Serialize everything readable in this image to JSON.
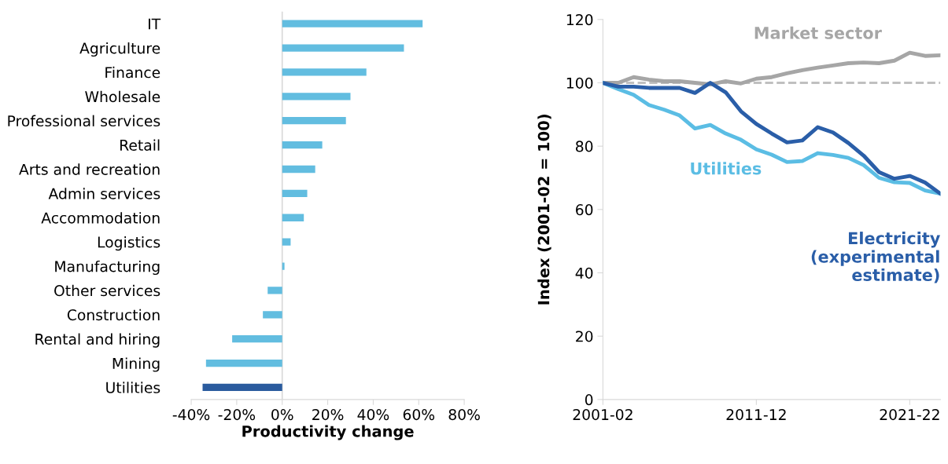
{
  "chart_data": [
    {
      "type": "bar",
      "orientation": "horizontal",
      "xlabel": "Productivity change",
      "categories": [
        "IT",
        "Agriculture",
        "Finance",
        "Wholesale",
        "Professional services",
        "Retail",
        "Arts and recreation",
        "Admin services",
        "Accommodation",
        "Logistics",
        "Manufacturing",
        "Other services",
        "Construction",
        "Rental and hiring",
        "Mining",
        "Utilities"
      ],
      "values": [
        61.7,
        53.5,
        37,
        30,
        28,
        17.6,
        14.5,
        11,
        9.5,
        3.7,
        1,
        -6.4,
        -8.5,
        -22,
        -33.5,
        -35
      ],
      "colors": [
        "#62bde0",
        "#62bde0",
        "#62bde0",
        "#62bde0",
        "#62bde0",
        "#62bde0",
        "#62bde0",
        "#62bde0",
        "#62bde0",
        "#62bde0",
        "#62bde0",
        "#62bde0",
        "#62bde0",
        "#62bde0",
        "#62bde0",
        "#2a5b9e"
      ],
      "xlim": [
        -40,
        80
      ],
      "xticks": [
        {
          "value": -40,
          "label": "-40%"
        },
        {
          "value": -20,
          "label": "-20%"
        },
        {
          "value": 0,
          "label": "0%"
        },
        {
          "value": 20,
          "label": "20%"
        },
        {
          "value": 40,
          "label": "40%"
        },
        {
          "value": 60,
          "label": "60%"
        },
        {
          "value": 80,
          "label": "80%"
        }
      ],
      "ref_lines": [
        {
          "axis": "x",
          "value": 0,
          "color": "#d9d9d9",
          "line_style": "solid"
        }
      ],
      "grid": false,
      "legend": false
    },
    {
      "type": "line",
      "ylabel": "Index (2001-02 = 100)",
      "categories": [
        "2001-02",
        null,
        null,
        null,
        null,
        null,
        null,
        null,
        null,
        null,
        "2011-12",
        null,
        null,
        null,
        null,
        null,
        null,
        null,
        null,
        null,
        "2021-22",
        null,
        null
      ],
      "series": [
        {
          "name": "Market sector",
          "color": "#a6a6a6",
          "values": [
            100,
            100,
            101.8,
            101,
            100.5,
            100.5,
            100,
            99.5,
            100.5,
            99.8,
            101.3,
            101.8,
            103,
            104,
            104.8,
            105.5,
            106.2,
            106.4,
            106.2,
            107,
            109.5,
            108.5,
            108.7
          ]
        },
        {
          "name": "Utilities",
          "color": "#5bbde4",
          "values": [
            100,
            98,
            96.2,
            93,
            91.5,
            89.7,
            85.6,
            86.7,
            84,
            82,
            79,
            77.3,
            75,
            75.3,
            77.8,
            77.2,
            76.3,
            74,
            70,
            68.6,
            68.4,
            66,
            65
          ]
        },
        {
          "name": "Electricity\n(experimental\nestimate)",
          "color": "#2a5ea8",
          "values": [
            100,
            98.8,
            98.8,
            98.4,
            98.4,
            98.4,
            96.8,
            100,
            97,
            91,
            87,
            84,
            81.2,
            81.8,
            86,
            84.3,
            81,
            77,
            71.8,
            69.7,
            70.6,
            68.5,
            65
          ]
        }
      ],
      "ylim": [
        0,
        120
      ],
      "yticks": [
        0,
        20,
        40,
        60,
        80,
        100,
        120
      ],
      "ref_lines": [
        {
          "axis": "y",
          "value": 100,
          "color": "#c0c0c0",
          "line_style": "dashed"
        }
      ],
      "grid": false,
      "legend": false,
      "marker": "none",
      "line_style": "solid"
    }
  ]
}
